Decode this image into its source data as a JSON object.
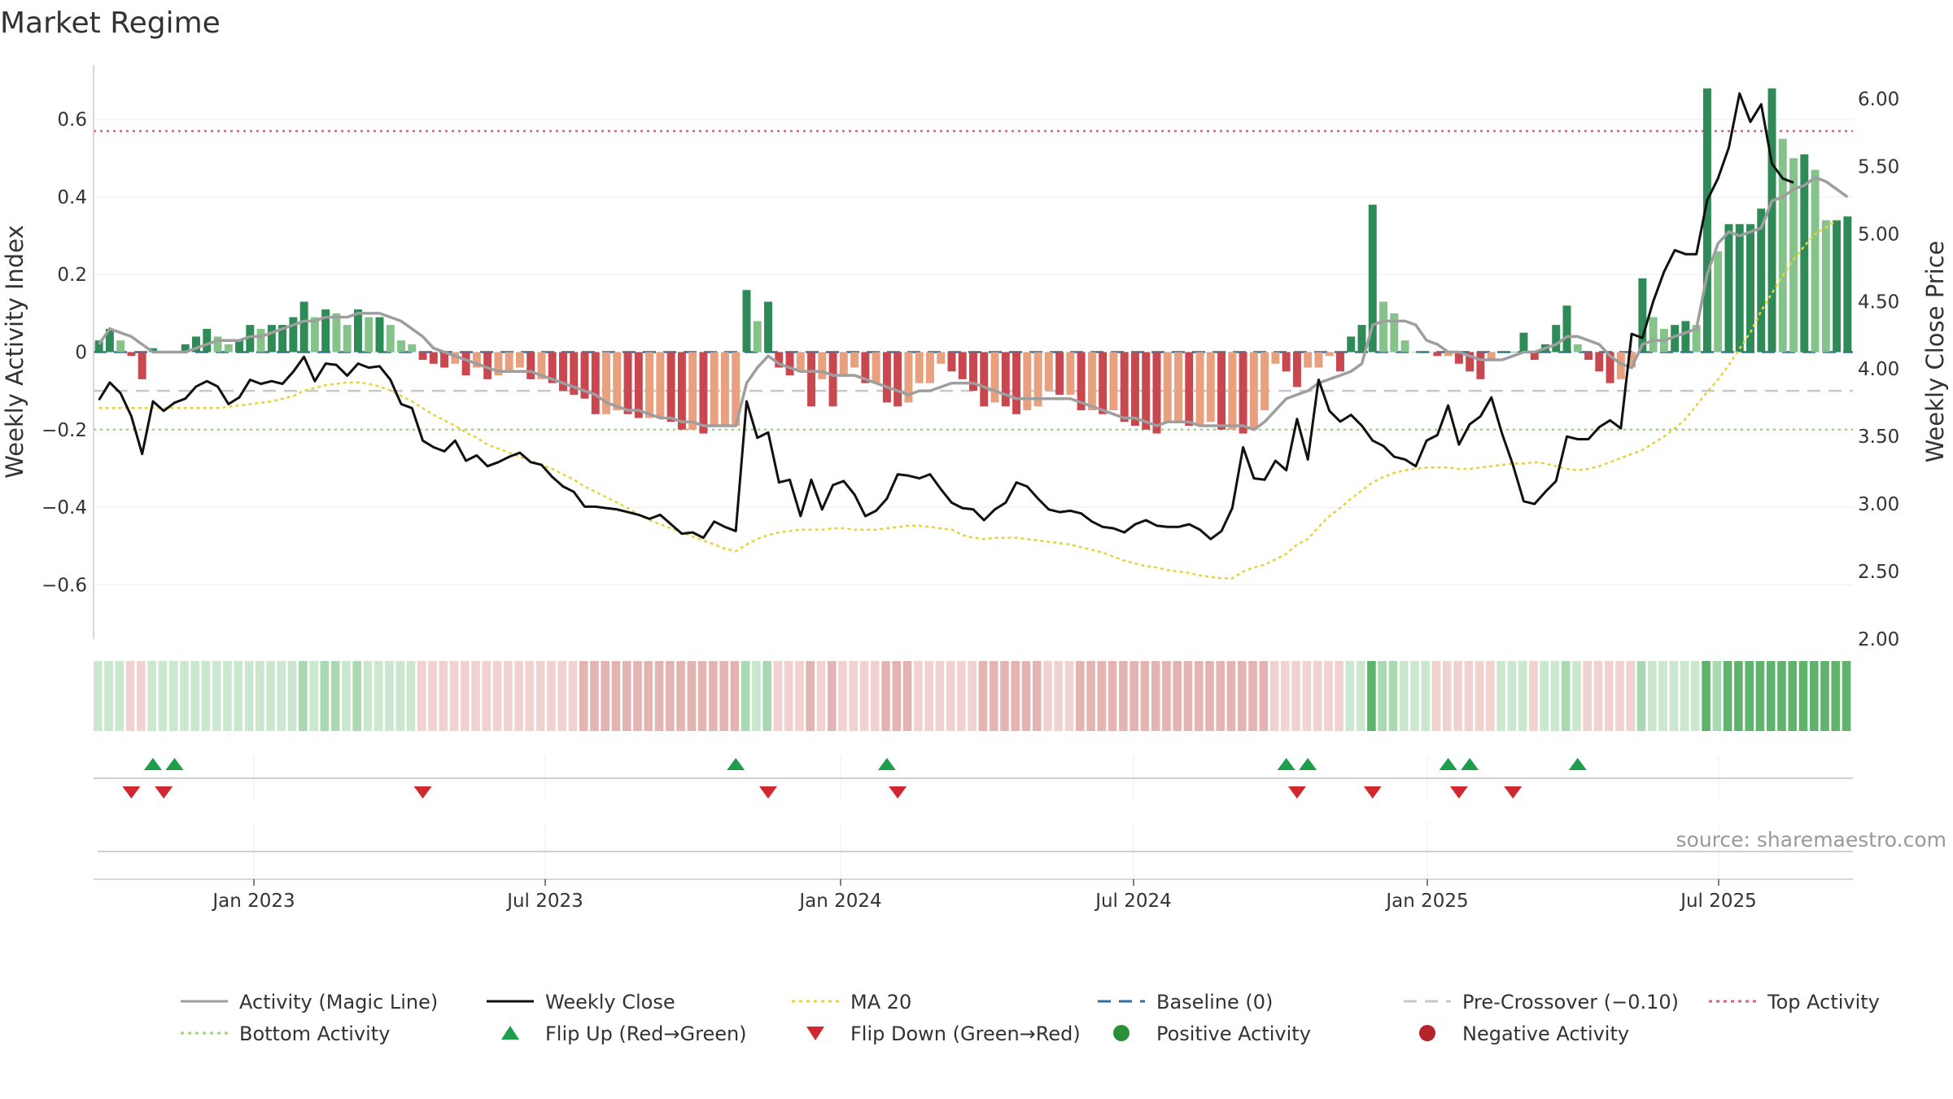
{
  "chart_data": {
    "type": "bar",
    "title": "Market Regime",
    "ylabel": "Weekly Activity Index",
    "y2label": "Weekly Close Price",
    "ylim": [
      -0.74,
      0.74
    ],
    "y2lim": [
      2.0,
      6.25
    ],
    "yticks": [
      0.6,
      0.4,
      0.2,
      0,
      -0.2,
      -0.4,
      -0.6
    ],
    "ytick_labels": [
      "0.6",
      "0.4",
      "0.2",
      "0",
      "−0.2",
      "−0.4",
      "−0.6"
    ],
    "y2ticks": [
      6.0,
      5.5,
      5.0,
      4.5,
      4.0,
      3.5,
      3.0,
      2.5,
      2.0
    ],
    "y2tick_labels": [
      "6.00",
      "5.50",
      "5.00",
      "4.50",
      "4.00",
      "3.50",
      "3.00",
      "2.50",
      "2.00"
    ],
    "xticks": [
      "Jan 2023",
      "Jul 2023",
      "Jan 2024",
      "Jul 2024",
      "Jan 2025",
      "Jul 2025"
    ],
    "grid": true,
    "source": "source: sharemaestro.com",
    "reference_lines": {
      "top_activity": 0.57,
      "bottom_activity": -0.2,
      "pre_crossover": -0.1,
      "baseline": 0
    },
    "activity": [
      0.03,
      0.06,
      0.03,
      -0.01,
      -0.07,
      0.01,
      0.0,
      0.0,
      0.02,
      0.04,
      0.06,
      0.04,
      0.02,
      0.03,
      0.07,
      0.06,
      0.07,
      0.07,
      0.09,
      0.13,
      0.09,
      0.11,
      0.1,
      0.07,
      0.11,
      0.09,
      0.09,
      0.07,
      0.03,
      0.02,
      -0.02,
      -0.03,
      -0.04,
      -0.03,
      -0.06,
      -0.04,
      -0.07,
      -0.06,
      -0.05,
      -0.04,
      -0.07,
      -0.07,
      -0.08,
      -0.1,
      -0.11,
      -0.12,
      -0.16,
      -0.16,
      -0.15,
      -0.16,
      -0.17,
      -0.17,
      -0.17,
      -0.18,
      -0.2,
      -0.2,
      -0.21,
      -0.19,
      -0.19,
      -0.19,
      0.16,
      0.08,
      0.13,
      -0.04,
      -0.06,
      -0.05,
      -0.14,
      -0.07,
      -0.14,
      -0.06,
      -0.04,
      -0.08,
      -0.08,
      -0.13,
      -0.14,
      -0.13,
      -0.08,
      -0.08,
      -0.03,
      -0.05,
      -0.07,
      -0.1,
      -0.14,
      -0.13,
      -0.14,
      -0.16,
      -0.15,
      -0.14,
      -0.1,
      -0.11,
      -0.11,
      -0.15,
      -0.15,
      -0.16,
      -0.15,
      -0.18,
      -0.19,
      -0.2,
      -0.21,
      -0.18,
      -0.18,
      -0.19,
      -0.19,
      -0.18,
      -0.2,
      -0.2,
      -0.21,
      -0.2,
      -0.15,
      -0.03,
      -0.05,
      -0.09,
      -0.04,
      -0.04,
      -0.01,
      -0.05,
      0.04,
      0.07,
      0.38,
      0.13,
      0.1,
      0.03,
      0.0,
      0.0,
      -0.01,
      -0.01,
      -0.03,
      -0.05,
      -0.07,
      -0.02,
      0.0,
      0.0,
      0.05,
      -0.02,
      0.02,
      0.07,
      0.12,
      0.02,
      -0.02,
      -0.05,
      -0.08,
      -0.07,
      -0.04,
      0.19,
      0.09,
      0.06,
      0.07,
      0.08,
      0.07,
      0.68,
      0.26,
      0.33,
      0.33,
      0.33,
      0.37,
      0.68,
      0.55,
      0.5,
      0.51,
      0.47,
      0.34,
      0.34,
      0.35
    ],
    "close": [
      3.77,
      3.9,
      3.82,
      3.65,
      3.37,
      3.76,
      3.69,
      3.75,
      3.78,
      3.87,
      3.91,
      3.87,
      3.74,
      3.79,
      3.92,
      3.89,
      3.91,
      3.89,
      3.98,
      4.09,
      3.91,
      4.04,
      4.03,
      3.95,
      4.04,
      4.01,
      4.02,
      3.92,
      3.74,
      3.71,
      3.47,
      3.42,
      3.39,
      3.47,
      3.32,
      3.36,
      3.28,
      3.31,
      3.35,
      3.38,
      3.31,
      3.29,
      3.2,
      3.13,
      3.09,
      2.98,
      2.98,
      2.97,
      2.96,
      2.94,
      2.92,
      2.89,
      2.92,
      2.85,
      2.78,
      2.79,
      2.75,
      2.87,
      2.83,
      2.8,
      3.76,
      3.49,
      3.53,
      3.16,
      3.18,
      2.91,
      3.18,
      2.96,
      3.14,
      3.17,
      3.07,
      2.91,
      2.95,
      3.04,
      3.22,
      3.21,
      3.19,
      3.22,
      3.11,
      3.01,
      2.97,
      2.96,
      2.88,
      2.96,
      3.01,
      3.16,
      3.13,
      3.04,
      2.96,
      2.94,
      2.95,
      2.93,
      2.87,
      2.83,
      2.82,
      2.79,
      2.85,
      2.88,
      2.84,
      2.83,
      2.83,
      2.85,
      2.81,
      2.74,
      2.8,
      2.97,
      3.42,
      3.19,
      3.18,
      3.32,
      3.25,
      3.63,
      3.33,
      3.92,
      3.69,
      3.61,
      3.66,
      3.58,
      3.47,
      3.43,
      3.35,
      3.33,
      3.28,
      3.47,
      3.51,
      3.73,
      3.44,
      3.59,
      3.65,
      3.79,
      3.52,
      3.29,
      3.02,
      3.0,
      3.09,
      3.17,
      3.5,
      3.48,
      3.48,
      3.57,
      3.62,
      3.56,
      4.26,
      4.23,
      4.5,
      4.72,
      4.88,
      4.85,
      4.85,
      5.25,
      5.41,
      5.64,
      6.04,
      5.83,
      5.96,
      5.52,
      5.41,
      5.38
    ],
    "magic_line": [
      0.02,
      0.06,
      0.05,
      0.04,
      0.02,
      0.0,
      -0.0,
      -0.0,
      0.0,
      0.01,
      0.02,
      0.03,
      0.03,
      0.03,
      0.04,
      0.04,
      0.05,
      0.06,
      0.07,
      0.08,
      0.08,
      0.09,
      0.09,
      0.09,
      0.1,
      0.1,
      0.1,
      0.09,
      0.08,
      0.06,
      0.04,
      0.01,
      -0.0,
      -0.01,
      -0.02,
      -0.03,
      -0.04,
      -0.05,
      -0.05,
      -0.05,
      -0.05,
      -0.06,
      -0.07,
      -0.08,
      -0.09,
      -0.1,
      -0.11,
      -0.13,
      -0.14,
      -0.15,
      -0.15,
      -0.16,
      -0.17,
      -0.17,
      -0.18,
      -0.18,
      -0.19,
      -0.19,
      -0.19,
      -0.19,
      -0.08,
      -0.04,
      -0.01,
      -0.03,
      -0.04,
      -0.05,
      -0.05,
      -0.05,
      -0.06,
      -0.06,
      -0.06,
      -0.07,
      -0.08,
      -0.09,
      -0.1,
      -0.11,
      -0.1,
      -0.1,
      -0.09,
      -0.08,
      -0.08,
      -0.08,
      -0.09,
      -0.1,
      -0.11,
      -0.12,
      -0.12,
      -0.12,
      -0.12,
      -0.12,
      -0.12,
      -0.13,
      -0.14,
      -0.15,
      -0.16,
      -0.17,
      -0.17,
      -0.18,
      -0.19,
      -0.18,
      -0.18,
      -0.18,
      -0.19,
      -0.19,
      -0.19,
      -0.19,
      -0.19,
      -0.2,
      -0.18,
      -0.15,
      -0.12,
      -0.11,
      -0.1,
      -0.08,
      -0.07,
      -0.06,
      -0.05,
      -0.03,
      0.07,
      0.08,
      0.08,
      0.08,
      0.07,
      0.03,
      0.02,
      0.0,
      -0.0,
      -0.01,
      -0.02,
      -0.02,
      -0.02,
      -0.01,
      0.0,
      0.0,
      0.01,
      0.02,
      0.04,
      0.04,
      0.03,
      0.02,
      -0.01,
      -0.03,
      -0.04,
      0.02,
      0.03,
      0.03,
      0.04,
      0.05,
      0.06,
      0.2,
      0.28,
      0.31,
      0.3,
      0.31,
      0.32,
      0.39,
      0.4,
      0.42,
      0.43,
      0.45,
      0.44,
      0.42,
      0.4
    ],
    "ma20": [
      3.71,
      3.71,
      3.71,
      3.71,
      3.71,
      3.71,
      3.71,
      3.71,
      3.71,
      3.71,
      3.71,
      3.71,
      3.72,
      3.73,
      3.74,
      3.75,
      3.76,
      3.78,
      3.8,
      3.84,
      3.86,
      3.88,
      3.89,
      3.9,
      3.9,
      3.89,
      3.87,
      3.84,
      3.8,
      3.76,
      3.71,
      3.66,
      3.62,
      3.58,
      3.53,
      3.49,
      3.44,
      3.41,
      3.38,
      3.35,
      3.32,
      3.29,
      3.26,
      3.22,
      3.18,
      3.13,
      3.09,
      3.05,
      3.01,
      2.97,
      2.92,
      2.88,
      2.85,
      2.82,
      2.79,
      2.76,
      2.73,
      2.7,
      2.67,
      2.65,
      2.7,
      2.74,
      2.77,
      2.79,
      2.8,
      2.81,
      2.81,
      2.81,
      2.82,
      2.82,
      2.81,
      2.81,
      2.81,
      2.82,
      2.83,
      2.84,
      2.84,
      2.83,
      2.82,
      2.81,
      2.77,
      2.75,
      2.74,
      2.75,
      2.75,
      2.75,
      2.74,
      2.73,
      2.72,
      2.71,
      2.7,
      2.68,
      2.66,
      2.64,
      2.61,
      2.58,
      2.56,
      2.54,
      2.53,
      2.51,
      2.5,
      2.49,
      2.47,
      2.46,
      2.45,
      2.45,
      2.5,
      2.53,
      2.55,
      2.59,
      2.63,
      2.7,
      2.74,
      2.83,
      2.91,
      2.97,
      3.04,
      3.1,
      3.16,
      3.2,
      3.23,
      3.25,
      3.26,
      3.27,
      3.27,
      3.27,
      3.26,
      3.26,
      3.27,
      3.28,
      3.29,
      3.3,
      3.3,
      3.31,
      3.3,
      3.28,
      3.26,
      3.25,
      3.26,
      3.28,
      3.31,
      3.34,
      3.37,
      3.4,
      3.45,
      3.5,
      3.56,
      3.63,
      3.73,
      3.83,
      3.92,
      4.03,
      4.15,
      4.27,
      4.43,
      4.56,
      4.69,
      4.81,
      4.91,
      5.0,
      5.05,
      5.1
    ],
    "flip_up_idx": [
      5,
      7,
      59,
      73,
      110,
      112,
      125,
      127,
      137
    ],
    "flip_down_idx": [
      3,
      6,
      30,
      62,
      74,
      111,
      118,
      126,
      131
    ],
    "legend": [
      {
        "label": "Activity (Magic Line)",
        "color": "#9e9e9e",
        "style": "solid"
      },
      {
        "label": "Weekly Close",
        "color": "#111111",
        "style": "solid"
      },
      {
        "label": "MA 20",
        "color": "#e8d23a",
        "style": "dotted"
      },
      {
        "label": "Baseline (0)",
        "color": "#2f6f9f",
        "style": "dashed"
      },
      {
        "label": "Pre-Crossover (−0.10)",
        "color": "#c8c8c8",
        "style": "dashed"
      },
      {
        "label": "Top Activity",
        "color": "#d9607a",
        "style": "dotted"
      },
      {
        "label": "Bottom Activity",
        "color": "#9ed67a",
        "style": "dotted"
      },
      {
        "label": "Flip Up (Red→Green)",
        "color": "#1e9e4a",
        "style": "tri-up"
      },
      {
        "label": "Flip Down (Green→Red)",
        "color": "#d0282e",
        "style": "tri-down"
      },
      {
        "label": "Positive Activity",
        "color": "#2a8f38",
        "style": "dot"
      },
      {
        "label": "Negative Activity",
        "color": "#b3242b",
        "style": "dot"
      }
    ],
    "colors": {
      "pos_strong": "#2e8b57",
      "pos_light": "#86c38a",
      "neg_strong": "#c9474e",
      "neg_light": "#e9a07f",
      "band_pos_light": "#cbe8cf",
      "band_pos_mid": "#a9d9b1",
      "band_pos_strong": "#5fb36d",
      "band_neg_light": "#f0d3d1",
      "band_neg_mid": "#e4b4b2"
    }
  }
}
